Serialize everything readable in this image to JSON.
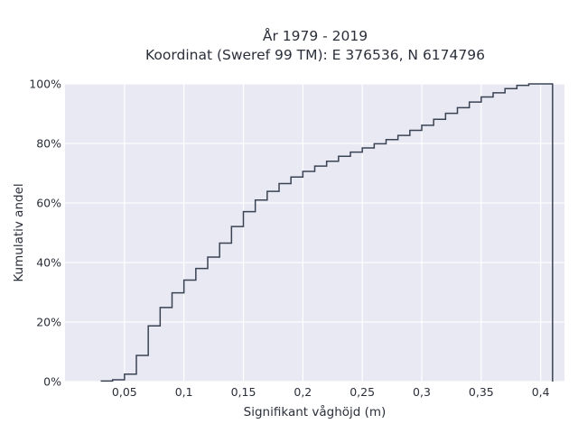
{
  "chart_data": {
    "type": "line",
    "subtype": "step-cdf",
    "title_lines": [
      "År 1979 - 2019",
      "Koordinat (Sweref 99 TM): E 376536, N 6174796"
    ],
    "xlabel": "Signifikant våghöjd (m)",
    "ylabel": "Kumulativ andel",
    "xlim": [
      0.0,
      0.42
    ],
    "ylim": [
      0,
      100
    ],
    "x_ticks": [
      0.05,
      0.1,
      0.15,
      0.2,
      0.25,
      0.3,
      0.35,
      0.4
    ],
    "x_tick_labels": [
      "0,05",
      "0,1",
      "0,15",
      "0,2",
      "0,25",
      "0,3",
      "0,35",
      "0,4"
    ],
    "y_ticks": [
      0,
      20,
      40,
      60,
      80,
      100
    ],
    "y_tick_labels": [
      "0%",
      "20%",
      "40%",
      "60%",
      "80%",
      "100%"
    ],
    "grid": true,
    "colors": {
      "plot_background": "#e8e9f2",
      "grid": "#ffffff",
      "line": "#3a4354"
    },
    "series": [
      {
        "x": [
          0.03,
          0.04,
          0.05,
          0.06,
          0.07,
          0.08,
          0.09,
          0.1,
          0.11,
          0.12,
          0.13,
          0.14,
          0.15,
          0.16,
          0.17,
          0.18,
          0.19,
          0.2,
          0.21,
          0.22,
          0.23,
          0.24,
          0.25,
          0.26,
          0.27,
          0.28,
          0.29,
          0.3,
          0.31,
          0.32,
          0.33,
          0.34,
          0.35,
          0.36,
          0.37,
          0.38,
          0.39,
          0.4,
          0.41
        ],
        "y": [
          0.2,
          0.6,
          2.5,
          8.8,
          18.7,
          24.9,
          29.8,
          34.1,
          38.0,
          41.8,
          46.5,
          52.1,
          57.1,
          61.0,
          63.9,
          66.5,
          68.7,
          70.6,
          72.4,
          74.0,
          75.7,
          77.1,
          78.5,
          79.9,
          81.3,
          82.7,
          84.4,
          86.1,
          88.1,
          90.1,
          92.0,
          93.9,
          95.6,
          97.0,
          98.4,
          99.5,
          100.0,
          100.0,
          0
        ]
      }
    ]
  }
}
